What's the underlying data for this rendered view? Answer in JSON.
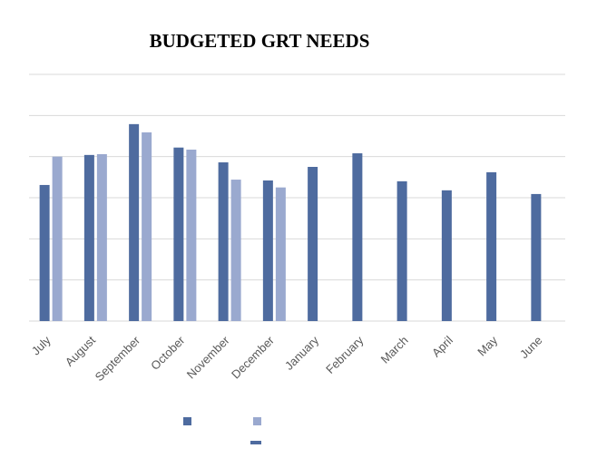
{
  "chart_data": {
    "type": "bar",
    "title": "BUDGETED GRT NEEDS",
    "categories": [
      "July",
      "August",
      "September",
      "October",
      "November",
      "December",
      "January",
      "February",
      "March",
      "April",
      "May",
      "June"
    ],
    "series": [
      {
        "color": "#4e6b9f",
        "values": [
          3.31,
          4.04,
          4.79,
          4.22,
          3.86,
          3.42,
          3.75,
          4.08,
          3.4,
          3.18,
          3.62,
          3.09
        ]
      },
      {
        "color": "#9aa9cf",
        "values": [
          4.0,
          4.06,
          4.59,
          4.17,
          3.44,
          3.25,
          null,
          null,
          null,
          null,
          null,
          null
        ]
      }
    ],
    "ylim": [
      0,
      6
    ],
    "yticks": [
      0,
      1,
      2,
      3,
      4,
      5,
      6
    ],
    "grid": true
  }
}
